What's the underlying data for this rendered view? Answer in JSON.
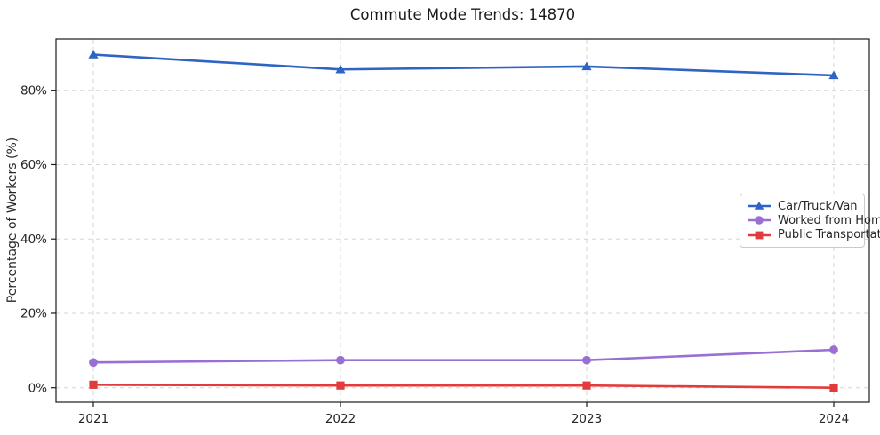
{
  "title": "Commute Mode Trends: 14870",
  "chart_data": {
    "type": "line",
    "title": "Commute Mode Trends: 14870",
    "xlabel": "",
    "ylabel": "Percentage of Workers (%)",
    "categories": [
      "2021",
      "2022",
      "2023",
      "2024"
    ],
    "series": [
      {
        "name": "Car/Truck/Van",
        "color": "#2e64c4",
        "marker": "triangle",
        "values": [
          89.6,
          85.6,
          86.4,
          84.0
        ]
      },
      {
        "name": "Worked from Home",
        "color": "#9a6fd4",
        "marker": "circle",
        "values": [
          6.8,
          7.4,
          7.4,
          10.2
        ]
      },
      {
        "name": "Public Transportation",
        "color": "#e23b3b",
        "marker": "square",
        "values": [
          0.8,
          0.6,
          0.6,
          0.0
        ]
      }
    ],
    "ylim": [
      -4,
      93.5
    ],
    "yticks": [
      0,
      20,
      40,
      60,
      80
    ],
    "ytick_labels": [
      "0%",
      "20%",
      "40%",
      "60%",
      "80%"
    ],
    "grid": true,
    "grid_style": "dashed",
    "legend_position": "center-right"
  },
  "colors": {
    "grid": "#d6d6d6",
    "frame": "#1a1a1a",
    "tick_text": "#262626"
  }
}
